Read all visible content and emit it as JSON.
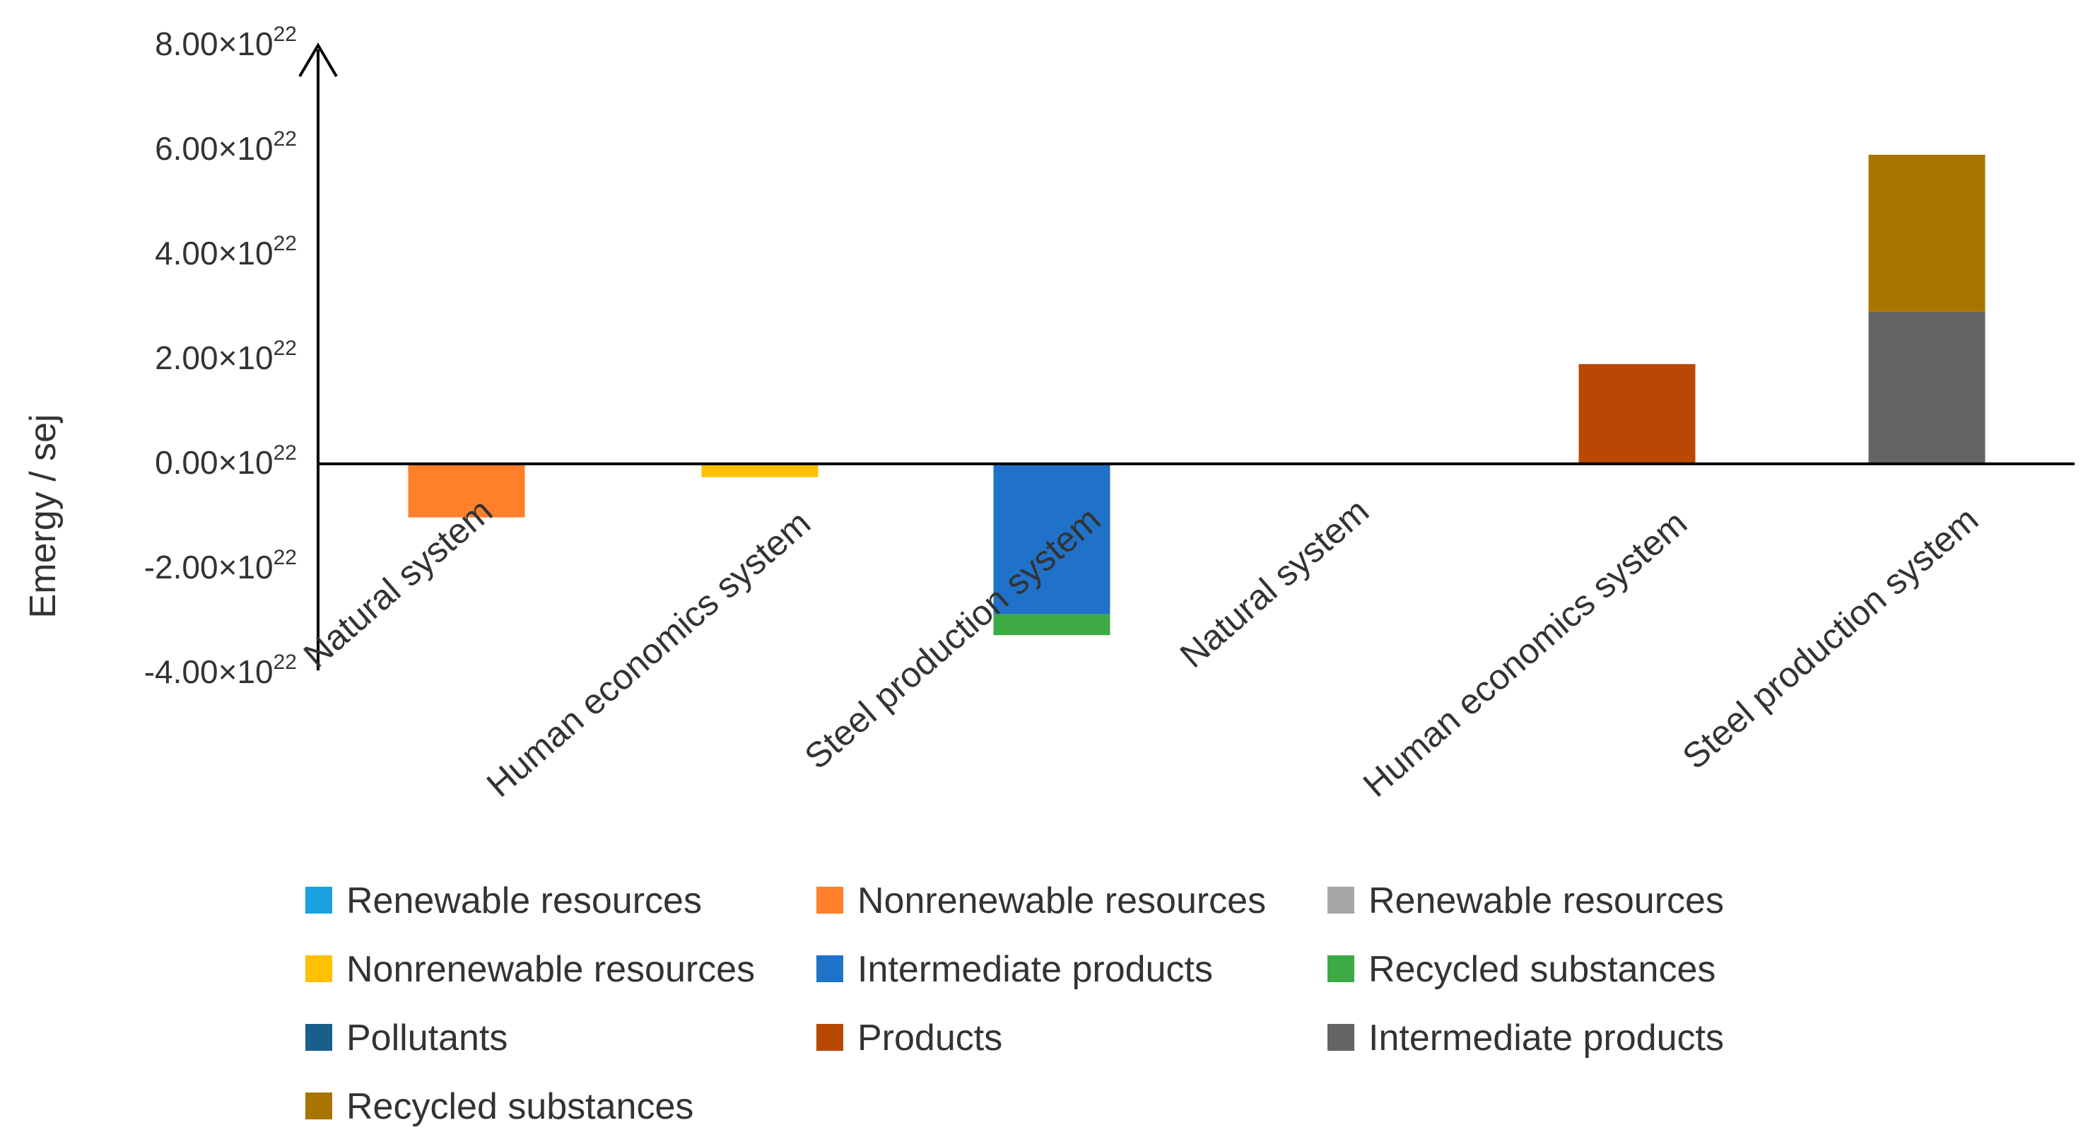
{
  "chart_data": {
    "type": "bar",
    "stacked": true,
    "title": "",
    "xlabel": "",
    "ylabel": "Emergy / sej",
    "ylim": [
      -4e+22,
      8e+22
    ],
    "y_ticks": [
      {
        "value": 8e+22,
        "mantissa": "8.00×10",
        "exponent": "22"
      },
      {
        "value": 6e+22,
        "mantissa": "6.00×10",
        "exponent": "22"
      },
      {
        "value": 4e+22,
        "mantissa": "4.00×10",
        "exponent": "22"
      },
      {
        "value": 2e+22,
        "mantissa": "2.00×10",
        "exponent": "22"
      },
      {
        "value": 0.0,
        "mantissa": "0.00×10",
        "exponent": "22"
      },
      {
        "value": -2e+22,
        "mantissa": "-2.00×10",
        "exponent": "22"
      },
      {
        "value": -4e+22,
        "mantissa": "-4.00×10",
        "exponent": "22"
      }
    ],
    "categories": [
      "Natural system",
      "Human economics system",
      "Steel production system",
      "Natural system",
      "Human economics system",
      "Steel production system"
    ],
    "series": [
      {
        "name": "Renewable resources",
        "color": "#1BA1E2",
        "values": [
          0,
          0,
          0,
          0,
          0,
          0
        ]
      },
      {
        "name": "Nonrenewable resources",
        "color": "#FF7F2A",
        "values": [
          -1.05e+22,
          0,
          0,
          0,
          0,
          0
        ]
      },
      {
        "name": "Renewable resources",
        "color": "#A6A6A6",
        "values": [
          0,
          0,
          0,
          0,
          0,
          0
        ]
      },
      {
        "name": "Nonrenewable resources",
        "color": "#FFC000",
        "values": [
          0,
          -2.8e+21,
          0,
          0,
          0,
          0
        ]
      },
      {
        "name": "Intermediate products",
        "color": "#1F72C8",
        "values": [
          0,
          0,
          -2.9e+22,
          0,
          0,
          0
        ]
      },
      {
        "name": "Recycled substances",
        "color": "#3DAA45",
        "values": [
          0,
          0,
          -4e+21,
          0,
          0,
          0
        ]
      },
      {
        "name": "Pollutants",
        "color": "#1A5F8C",
        "values": [
          0,
          0,
          0,
          0,
          0,
          0
        ]
      },
      {
        "name": "Products",
        "color": "#B84804",
        "values": [
          0,
          0,
          0,
          0,
          1.88e+22,
          0
        ]
      },
      {
        "name": "Intermediate products",
        "color": "#646464",
        "values": [
          0,
          0,
          0,
          0,
          0,
          2.88e+22
        ]
      },
      {
        "name": "Recycled substances",
        "color": "#A87500",
        "values": [
          0,
          0,
          0,
          0,
          0,
          3e+22
        ]
      }
    ],
    "legend_position": "bottom"
  }
}
